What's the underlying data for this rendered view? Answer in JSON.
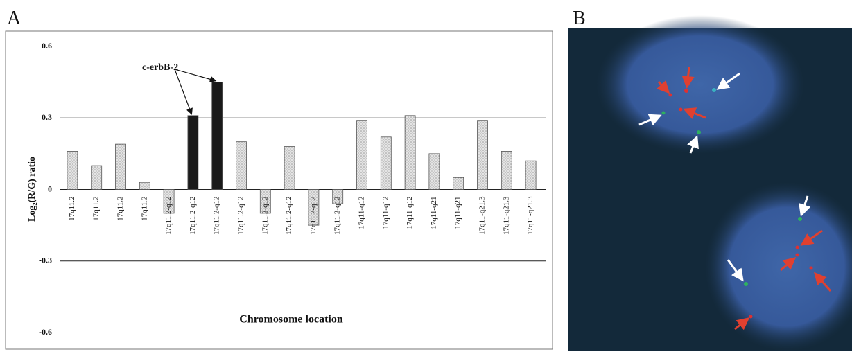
{
  "panel_a_label": "A",
  "panel_b_label": "B",
  "chart_data": {
    "type": "bar",
    "y_label": "Log₂(R/G) ratio",
    "x_label": "Chromosome location",
    "annotation": "c-erbB-2",
    "categories": [
      "17q11.2",
      "17q11.2",
      "17q11.2",
      "17q11.2",
      "17q11.2-q12",
      "17q11.2-q12",
      "17q11.2-q12",
      "17q11.2-q12",
      "17q11.2-q12",
      "17q11.2-q12",
      "17q11.2-q12",
      "17q11.2-q12",
      "17q11-q12",
      "17q11-q12",
      "17q11-q12",
      "17q11-q21",
      "17q11-q21",
      "17q11-q21.3",
      "17q11-q21.3",
      "17q11-q21.3"
    ],
    "values": [
      0.16,
      0.1,
      0.19,
      0.03,
      -0.1,
      0.31,
      0.45,
      0.2,
      -0.1,
      0.18,
      -0.15,
      -0.06,
      0.29,
      0.22,
      0.31,
      0.15,
      0.05,
      0.29,
      0.16,
      0.12
    ],
    "colors": [
      "#dcdcdc",
      "#dcdcdc",
      "#dcdcdc",
      "#dcdcdc",
      "#dcdcdc",
      "#1a1a1a",
      "#1a1a1a",
      "#dcdcdc",
      "#dcdcdc",
      "#dcdcdc",
      "#dcdcdc",
      "#dcdcdc",
      "#dcdcdc",
      "#dcdcdc",
      "#dcdcdc",
      "#dcdcdc",
      "#dcdcdc",
      "#dcdcdc",
      "#dcdcdc",
      "#dcdcdc"
    ],
    "ylim": [
      -0.6,
      0.6
    ],
    "yticks": [
      0.6,
      0.3,
      0,
      -0.3,
      -0.6
    ],
    "grid": true
  }
}
